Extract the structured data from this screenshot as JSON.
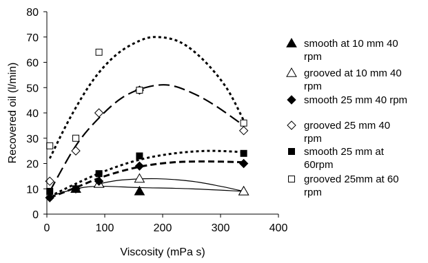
{
  "chart_data": {
    "type": "scatter",
    "title": "",
    "xlabel": "Viscosity (mPa s)",
    "ylabel": "Recovered oil (l/min)",
    "xlim": [
      0,
      400
    ],
    "ylim": [
      0,
      80
    ],
    "xticks": [
      0,
      100,
      200,
      300,
      400
    ],
    "yticks": [
      0,
      10,
      20,
      30,
      40,
      50,
      60,
      70,
      80
    ],
    "grid": false,
    "legend_position": "right",
    "series": [
      {
        "name": "smooth at 10 mm 40 rpm",
        "marker": "filled-triangle",
        "points": [
          [
            50,
            10
          ],
          [
            90,
            12
          ],
          [
            160,
            9
          ],
          [
            340,
            9
          ]
        ],
        "trendline": "solid-thin",
        "trend": [
          [
            5,
            7
          ],
          [
            50,
            10
          ],
          [
            90,
            11
          ],
          [
            160,
            10.5
          ],
          [
            250,
            10
          ],
          [
            340,
            9
          ]
        ]
      },
      {
        "name": "grooved at 10 mm 40 rpm",
        "marker": "open-triangle",
        "points": [
          [
            90,
            12
          ],
          [
            160,
            14
          ],
          [
            340,
            9
          ]
        ],
        "trendline": "solid-thin",
        "trend": [
          [
            90,
            12
          ],
          [
            130,
            13.5
          ],
          [
            190,
            14
          ],
          [
            250,
            13
          ],
          [
            300,
            11
          ],
          [
            340,
            9
          ]
        ]
      },
      {
        "name": "smooth 25 mm 40 rpm",
        "marker": "filled-diamond",
        "points": [
          [
            5,
            6.5
          ],
          [
            50,
            10
          ],
          [
            90,
            13
          ],
          [
            160,
            19
          ],
          [
            340,
            20
          ]
        ],
        "trendline": "dashed",
        "trend": [
          [
            5,
            6.5
          ],
          [
            50,
            10.5
          ],
          [
            100,
            15
          ],
          [
            160,
            18.7
          ],
          [
            220,
            20.5
          ],
          [
            280,
            20.8
          ],
          [
            340,
            20.5
          ]
        ]
      },
      {
        "name": "grooved 25 mm 40 rpm",
        "marker": "open-diamond",
        "points": [
          [
            5,
            13
          ],
          [
            50,
            25
          ],
          [
            90,
            40
          ],
          [
            160,
            49
          ],
          [
            340,
            33
          ]
        ],
        "trendline": "long-dash",
        "trend": [
          [
            5,
            9
          ],
          [
            50,
            27
          ],
          [
            90,
            38
          ],
          [
            130,
            46
          ],
          [
            170,
            50
          ],
          [
            210,
            51
          ],
          [
            250,
            48
          ],
          [
            290,
            43
          ],
          [
            340,
            35
          ]
        ]
      },
      {
        "name": "smooth 25 mm at 60rpm",
        "marker": "filled-square",
        "points": [
          [
            5,
            9
          ],
          [
            50,
            10
          ],
          [
            90,
            16
          ],
          [
            160,
            23
          ],
          [
            340,
            24
          ]
        ],
        "trendline": "dotted",
        "trend": [
          [
            5,
            7
          ],
          [
            50,
            12
          ],
          [
            100,
            17
          ],
          [
            160,
            21.5
          ],
          [
            220,
            24
          ],
          [
            280,
            25
          ],
          [
            340,
            24.5
          ]
        ]
      },
      {
        "name": "grooved 25mm at 60 rpm",
        "marker": "open-square",
        "points": [
          [
            5,
            27
          ],
          [
            50,
            30
          ],
          [
            90,
            64
          ],
          [
            160,
            49
          ],
          [
            340,
            36
          ]
        ],
        "trendline": "dotted",
        "trend": [
          [
            5,
            22
          ],
          [
            40,
            38
          ],
          [
            80,
            53
          ],
          [
            120,
            63
          ],
          [
            160,
            68.5
          ],
          [
            190,
            70
          ],
          [
            230,
            68
          ],
          [
            270,
            61
          ],
          [
            310,
            50
          ],
          [
            340,
            37
          ]
        ]
      }
    ]
  }
}
